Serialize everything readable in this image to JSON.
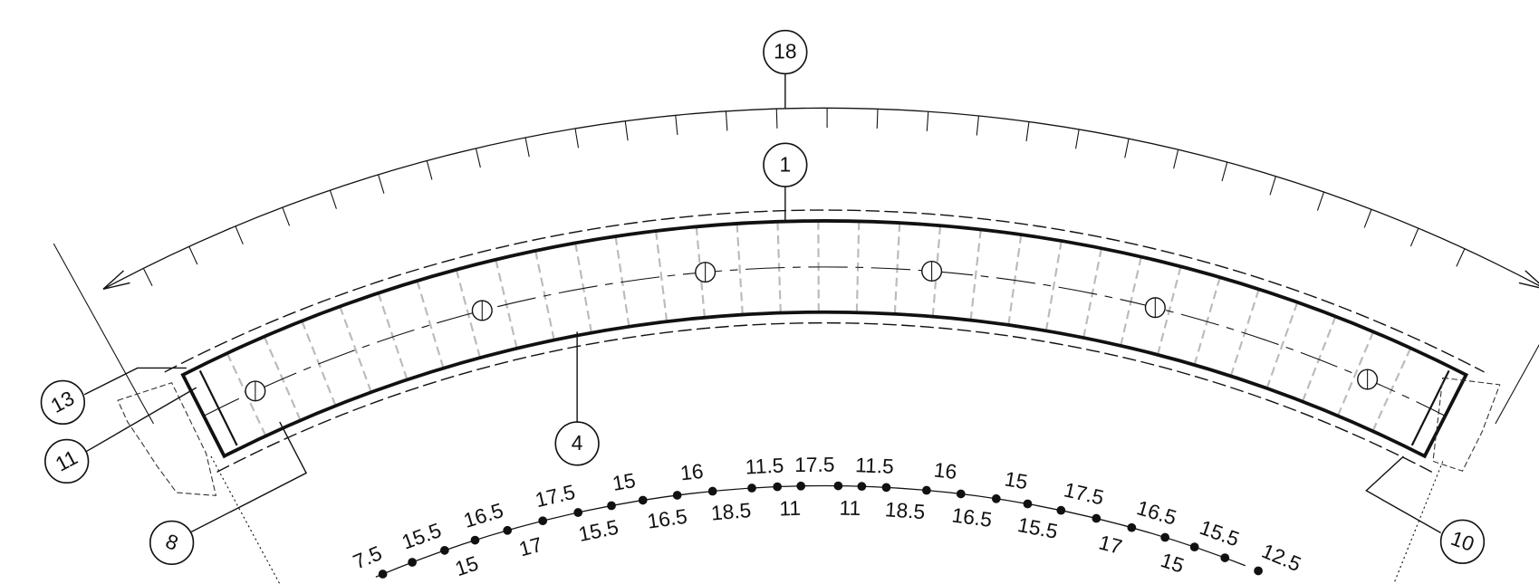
{
  "callouts": [
    "18",
    "1",
    "13",
    "11",
    "4",
    "8",
    "10"
  ],
  "upper_labels": [
    "7.5",
    "15.5",
    "16.5",
    "17.5",
    "15",
    "16",
    "11.5",
    "17.5",
    "11.5",
    "16",
    "15",
    "17.5",
    "16.5",
    "15.5",
    "12.5"
  ],
  "lower_labels": [
    "15",
    "17",
    "15.5",
    "16.5",
    "18.5",
    "11",
    "11",
    "18.5",
    "16.5",
    "15.5",
    "17",
    "15"
  ]
}
